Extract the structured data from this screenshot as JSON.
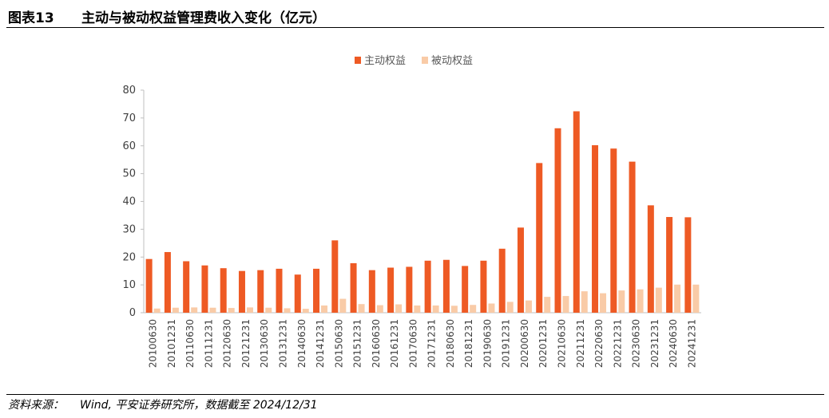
{
  "header": {
    "label": "图表13",
    "title": "主动与被动权益管理费收入变化（亿元）"
  },
  "footer": {
    "source_label": "资料来源：",
    "source_text": "Wind, 平安证券研究所，数据截至 2024/12/31"
  },
  "colors": {
    "active": "#EE5A24",
    "passive": "#F9CBA7",
    "axis": "#BFBFBF"
  },
  "chart_data": {
    "type": "bar",
    "title": "",
    "xlabel": "",
    "ylabel": "",
    "ylim": [
      0,
      80
    ],
    "yticks": [
      0,
      10,
      20,
      30,
      40,
      50,
      60,
      70,
      80
    ],
    "legend_position": "top-center",
    "categories": [
      "20100630",
      "20101231",
      "20110630",
      "20111231",
      "20120630",
      "20121231",
      "20130630",
      "20131231",
      "20140630",
      "20141231",
      "20150630",
      "20151231",
      "20160630",
      "20161231",
      "20170630",
      "20171231",
      "20180630",
      "20181231",
      "20190630",
      "20191231",
      "20200630",
      "20201231",
      "20210630",
      "20211231",
      "20220630",
      "20221231",
      "20230630",
      "20231231",
      "20240630",
      "20241231"
    ],
    "series": [
      {
        "name": "主动权益",
        "values": [
          19.3,
          21.8,
          18.5,
          17.0,
          16.0,
          15.0,
          15.3,
          15.8,
          13.7,
          15.8,
          26.0,
          17.8,
          15.3,
          16.2,
          16.5,
          18.7,
          19.0,
          16.8,
          18.7,
          23.0,
          30.6,
          53.8,
          66.3,
          72.4,
          60.2,
          59.0,
          54.3,
          38.6,
          34.4,
          34.3
        ]
      },
      {
        "name": "被动权益",
        "values": [
          1.5,
          1.8,
          1.9,
          1.8,
          1.7,
          1.9,
          1.8,
          1.6,
          1.4,
          2.6,
          5.0,
          3.1,
          2.7,
          3.0,
          2.6,
          2.6,
          2.5,
          2.8,
          3.3,
          3.9,
          4.4,
          5.7,
          6.0,
          7.7,
          7.0,
          8.0,
          8.4,
          9.0,
          10.1,
          10.1
        ]
      }
    ]
  }
}
